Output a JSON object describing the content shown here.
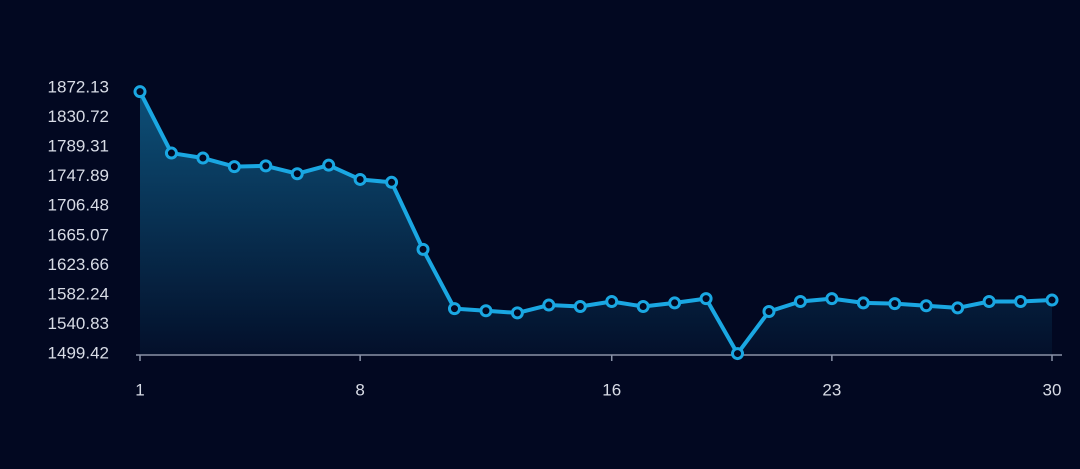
{
  "chart_data": {
    "type": "line",
    "x": [
      1,
      2,
      3,
      4,
      5,
      6,
      7,
      8,
      9,
      10,
      11,
      12,
      13,
      14,
      15,
      16,
      17,
      18,
      19,
      20,
      21,
      22,
      23,
      24,
      25,
      26,
      27,
      28,
      29,
      30
    ],
    "series": [
      {
        "color": "#1aa7e2",
        "values": [
          1867,
          1781,
          1774,
          1762,
          1763,
          1752,
          1764,
          1744,
          1740,
          1646,
          1563,
          1560,
          1557,
          1568,
          1566,
          1573,
          1566,
          1571,
          1577,
          1500,
          1559,
          1573,
          1577,
          1571,
          1570,
          1567,
          1564,
          1573,
          1573,
          1575
        ]
      }
    ],
    "xlim": [
      1,
      30
    ],
    "xticks": [
      1,
      8,
      16,
      23,
      30
    ],
    "ylim": [
      1499.42,
      1872.13
    ],
    "yticks": [
      1499.42,
      1540.83,
      1582.24,
      1623.66,
      1665.07,
      1706.48,
      1747.89,
      1789.31,
      1830.72,
      1872.13
    ],
    "grid": false
  }
}
